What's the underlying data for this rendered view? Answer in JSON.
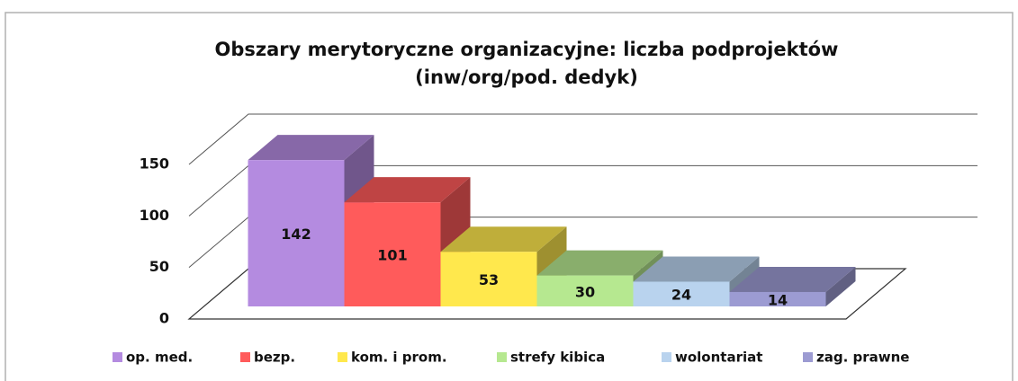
{
  "chart_data": {
    "type": "bar3d",
    "title": [
      "Obszary merytoryczne organizacyjne: liczba podprojektów",
      "(inw/org/pod. dedyk)"
    ],
    "series": [
      {
        "name": "op. med.",
        "color": "#b48be0",
        "values": [
          142
        ]
      },
      {
        "name": "bezp.",
        "color": "#ff5b5b",
        "values": [
          101
        ]
      },
      {
        "name": "kom. i prom.",
        "color": "#ffe84d",
        "values": [
          53
        ]
      },
      {
        "name": "strefy kibica",
        "color": "#b6e890",
        "values": [
          30
        ]
      },
      {
        "name": "wolontariat",
        "color": "#b9d3ee",
        "values": [
          24
        ]
      },
      {
        "name": "zag. prawne",
        "color": "#9c9bd2",
        "values": [
          14
        ]
      }
    ],
    "ylim": [
      0,
      150
    ],
    "yticks": [
      0,
      50,
      100,
      150
    ],
    "grid": true,
    "legend": "bottom"
  }
}
